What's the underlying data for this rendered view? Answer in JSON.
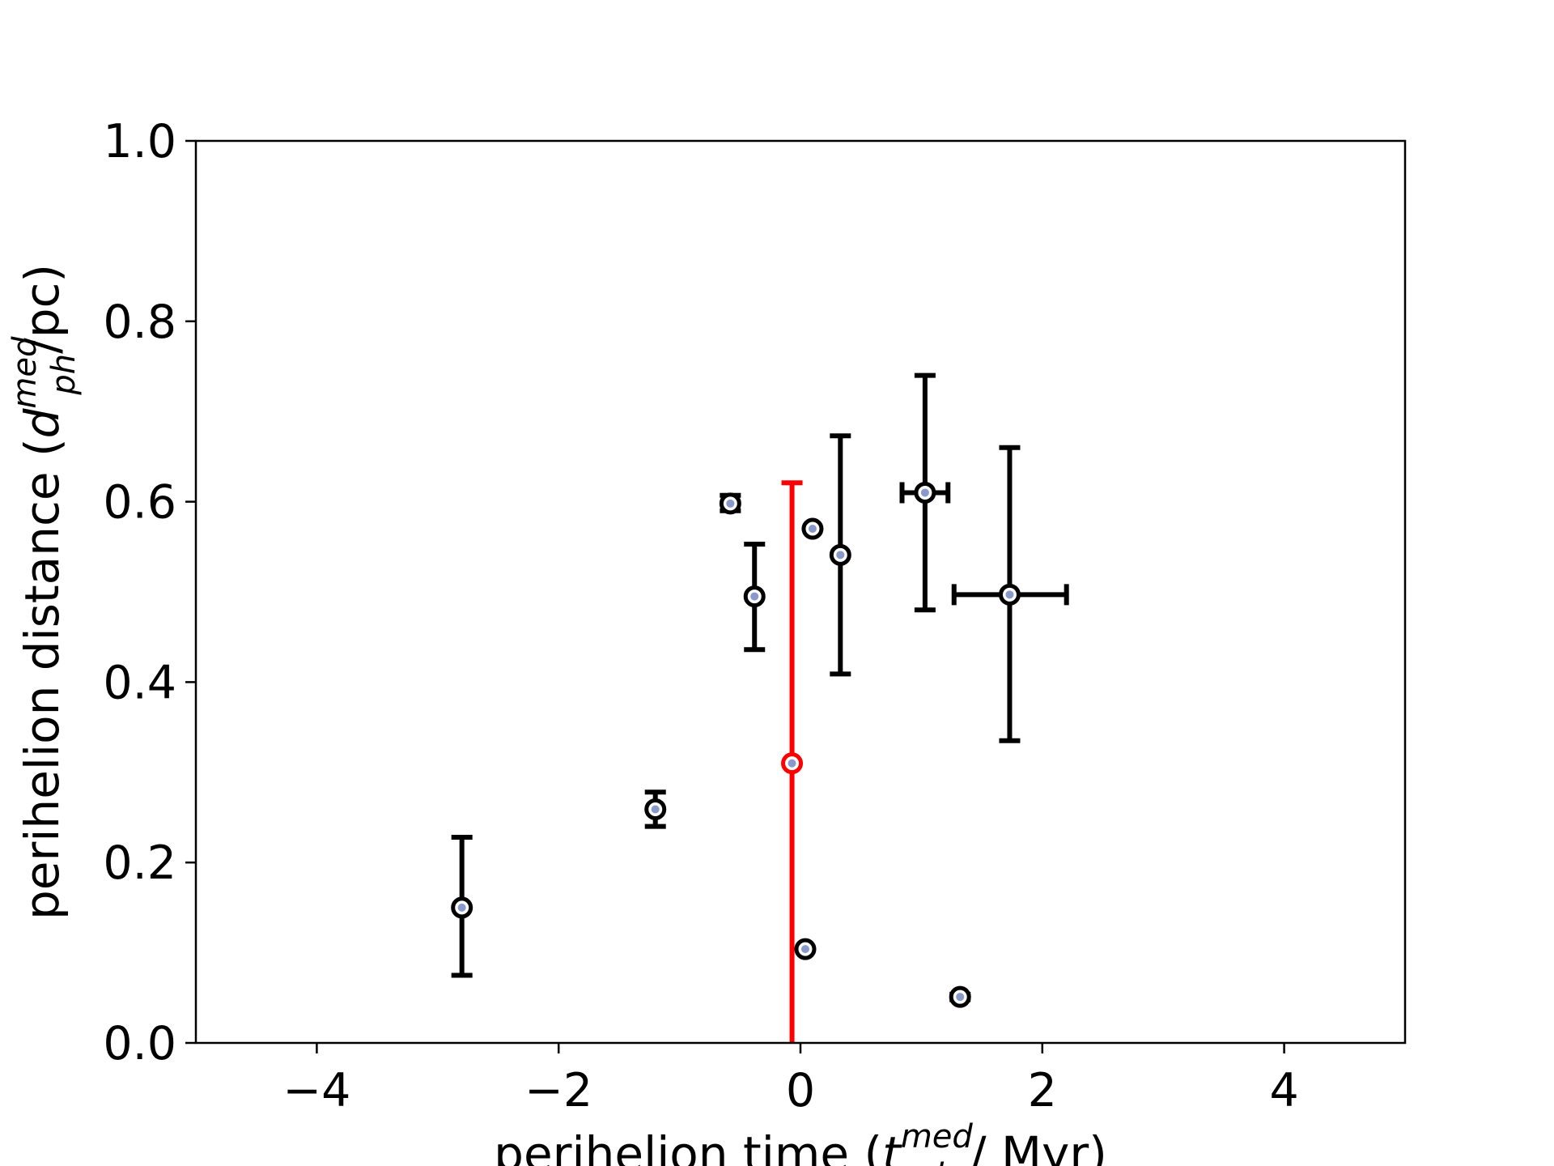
{
  "colors": {
    "highlight": "#ff0000",
    "default": "#000000",
    "marker_dot": "#8899cc",
    "background": "#ffffff"
  },
  "chart_data": {
    "type": "scatter",
    "title": "",
    "xlabel": {
      "prefix": "perihelion time (",
      "symbol": "t",
      "superscript": "med",
      "subscript": "ph",
      "suffix": " / Myr)"
    },
    "ylabel": {
      "prefix": "perihelion distance (",
      "symbol": "d",
      "superscript": "med",
      "subscript": "ph",
      "suffix": "/pc)"
    },
    "xlim": [
      -5,
      5
    ],
    "ylim": [
      0,
      1.0
    ],
    "xticks": [
      -4,
      -2,
      0,
      2,
      4
    ],
    "xtick_labels": [
      "−4",
      "−2",
      "0",
      "2",
      "4"
    ],
    "yticks": [
      0.0,
      0.2,
      0.4,
      0.6,
      0.8,
      1.0
    ],
    "ytick_labels": [
      "0.0",
      "0.2",
      "0.4",
      "0.6",
      "0.8",
      "1.0"
    ],
    "grid": false,
    "points": [
      {
        "x": -2.8,
        "y": 0.15,
        "y_low": 0.075,
        "y_high": 0.228,
        "x_low": -2.8,
        "x_high": -2.8,
        "highlight": false
      },
      {
        "x": -1.2,
        "y": 0.259,
        "y_low": 0.24,
        "y_high": 0.278,
        "x_low": -1.2,
        "x_high": -1.2,
        "highlight": false
      },
      {
        "x": -0.58,
        "y": 0.598,
        "y_low": 0.59,
        "y_high": 0.607,
        "x_low": -0.58,
        "x_high": -0.58,
        "highlight": false
      },
      {
        "x": -0.38,
        "y": 0.495,
        "y_low": 0.436,
        "y_high": 0.553,
        "x_low": -0.38,
        "x_high": -0.38,
        "highlight": false
      },
      {
        "x": -0.07,
        "y": 0.31,
        "y_low": 0.0,
        "y_high": 0.621,
        "x_low": -0.07,
        "x_high": -0.07,
        "highlight": true
      },
      {
        "x": 0.04,
        "y": 0.104,
        "y_low": 0.104,
        "y_high": 0.104,
        "x_low": 0.04,
        "x_high": 0.04,
        "highlight": false
      },
      {
        "x": 0.1,
        "y": 0.57,
        "y_low": 0.57,
        "y_high": 0.57,
        "x_low": 0.1,
        "x_high": 0.1,
        "highlight": false
      },
      {
        "x": 0.33,
        "y": 0.541,
        "y_low": 0.409,
        "y_high": 0.673,
        "x_low": 0.33,
        "x_high": 0.33,
        "highlight": false
      },
      {
        "x": 1.03,
        "y": 0.61,
        "y_low": 0.48,
        "y_high": 0.74,
        "x_low": 0.84,
        "x_high": 1.22,
        "highlight": false
      },
      {
        "x": 1.32,
        "y": 0.051,
        "y_low": 0.048,
        "y_high": 0.054,
        "x_low": 1.32,
        "x_high": 1.32,
        "highlight": false
      },
      {
        "x": 1.73,
        "y": 0.497,
        "y_low": 0.335,
        "y_high": 0.66,
        "x_low": 1.27,
        "x_high": 2.2,
        "highlight": false
      }
    ]
  }
}
